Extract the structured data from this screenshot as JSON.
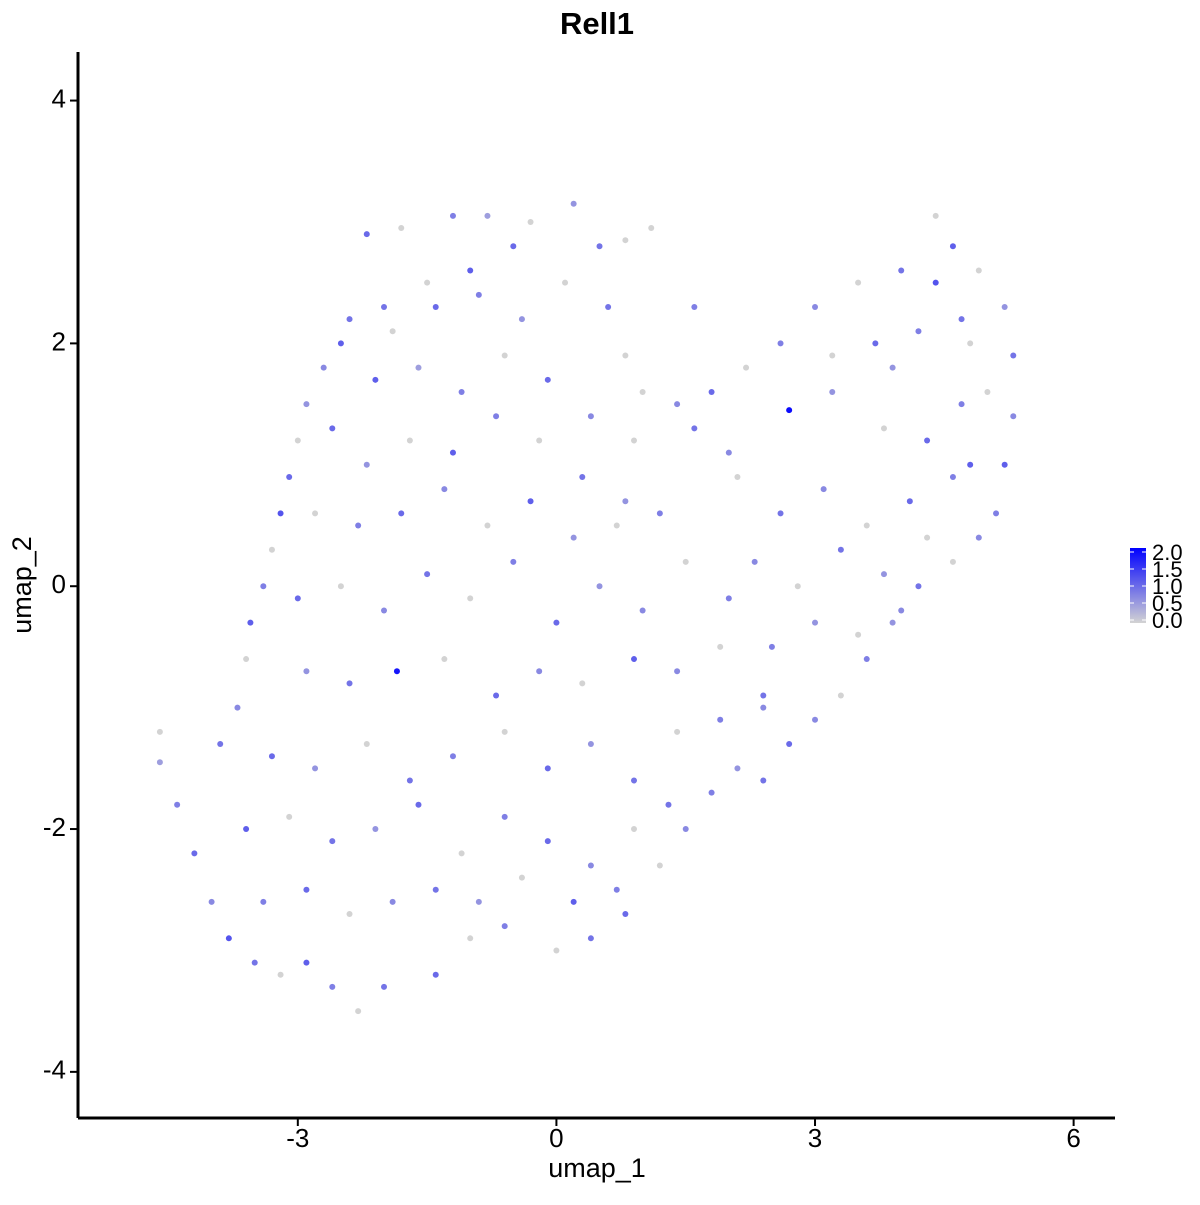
{
  "chart_data": {
    "type": "scatter",
    "title": "Rell1",
    "x_label": "umap_1",
    "y_label": "umap_2",
    "xlim": [
      -5.55,
      6.48
    ],
    "xticks": [
      -3,
      0,
      3,
      6
    ],
    "ylim": [
      -4.38,
      4.4
    ],
    "yticks": [
      -4,
      -2,
      0,
      2,
      4
    ],
    "color_low": "#d3d3d3",
    "color_high": "#0000ff",
    "colorbar_lim": [
      0,
      2
    ],
    "colorbar_ticks": [
      {
        "value": 0,
        "label": "0.0"
      },
      {
        "value": 0.5,
        "label": "0.5"
      },
      {
        "value": 1,
        "label": "1.0"
      },
      {
        "value": 1.5,
        "label": "1.5"
      },
      {
        "value": 2,
        "label": "2.0"
      }
    ],
    "x": [
      -2.2,
      -1.8,
      -1.2,
      -0.8,
      -0.3,
      0.2,
      0.5,
      0.8,
      1.1,
      -0.5,
      -1.0,
      -1.5,
      -2.0,
      -2.5,
      -2.7,
      -2.9,
      -3.0,
      -3.1,
      -3.2,
      -3.3,
      -3.4,
      -3.55,
      -3.6,
      -3.7,
      -3.9,
      -4.6,
      -4.6,
      -4.4,
      -4.2,
      -4.0,
      -3.8,
      -3.5,
      -3.2,
      -2.9,
      -2.6,
      -2.3,
      -2.0,
      -1.4,
      -1.0,
      -0.6,
      0.0,
      0.4,
      0.8,
      1.2,
      1.5,
      1.8,
      2.1,
      2.4,
      2.7,
      3.0,
      3.3,
      3.6,
      3.9,
      4.2,
      4.6,
      4.9,
      5.1,
      5.2,
      5.3,
      5.3,
      5.2,
      4.9,
      4.6,
      4.4,
      4.0,
      3.5,
      3.0,
      2.6,
      2.2,
      1.8,
      1.4,
      1.0,
      0.8,
      2.7,
      3.2,
      3.8,
      4.3,
      4.7,
      2.0,
      1.6,
      -2.4,
      -1.9,
      -1.4,
      -0.9,
      -0.4,
      0.1,
      0.6,
      -2.1,
      -1.6,
      -1.1,
      -0.6,
      -0.1,
      0.4,
      0.9,
      -2.6,
      -2.2,
      -1.7,
      -1.2,
      -0.7,
      -0.2,
      0.3,
      0.8,
      -2.8,
      -2.3,
      -1.8,
      -1.3,
      -0.8,
      -0.3,
      0.2,
      0.7,
      1.2,
      -3.0,
      -2.5,
      -2.0,
      -1.5,
      -1.0,
      -0.5,
      0.0,
      0.5,
      1.0,
      1.5,
      2.0,
      -2.9,
      -2.4,
      -1.85,
      -1.3,
      -0.7,
      -0.2,
      0.3,
      0.9,
      1.4,
      1.9,
      2.4,
      -3.3,
      -2.8,
      -2.2,
      -1.7,
      -1.2,
      -0.6,
      -0.1,
      0.4,
      0.9,
      1.4,
      1.9,
      2.4,
      -3.6,
      -3.1,
      -2.6,
      -2.1,
      -1.6,
      -1.1,
      -0.6,
      -0.1,
      0.4,
      0.9,
      1.3,
      -3.4,
      -2.9,
      -2.4,
      -1.9,
      -1.4,
      -0.9,
      -0.4,
      0.2,
      0.7,
      2.1,
      2.6,
      3.1,
      3.6,
      4.1,
      4.6,
      2.3,
      2.8,
      3.3,
      3.8,
      4.3,
      4.8,
      2.5,
      3.0,
      3.5,
      4.0,
      3.2,
      3.7,
      4.2,
      4.7,
      5.0,
      3.9,
      4.4,
      4.8,
      1.6
    ],
    "y": [
      2.9,
      2.95,
      3.05,
      3.05,
      3.0,
      3.15,
      2.8,
      2.85,
      2.95,
      2.8,
      2.6,
      2.5,
      2.3,
      2.0,
      1.8,
      1.5,
      1.2,
      0.9,
      0.6,
      0.3,
      0.0,
      -0.3,
      -0.6,
      -1.0,
      -1.3,
      -1.2,
      -1.45,
      -1.8,
      -2.2,
      -2.6,
      -2.9,
      -3.1,
      -3.2,
      -3.1,
      -3.3,
      -3.5,
      -3.3,
      -3.2,
      -2.9,
      -2.8,
      -3.0,
      -2.9,
      -2.7,
      -2.3,
      -2.0,
      -1.7,
      -1.5,
      -1.6,
      -1.3,
      -1.1,
      -0.9,
      -0.6,
      -0.3,
      0.0,
      0.2,
      0.4,
      0.6,
      1.0,
      1.4,
      1.9,
      2.3,
      2.6,
      2.8,
      3.05,
      2.6,
      2.5,
      2.3,
      2.0,
      1.8,
      1.6,
      1.5,
      1.6,
      1.9,
      1.45,
      1.6,
      1.3,
      1.2,
      1.5,
      1.1,
      1.3,
      2.2,
      2.1,
      2.3,
      2.4,
      2.2,
      2.5,
      2.3,
      1.7,
      1.8,
      1.6,
      1.9,
      1.7,
      1.4,
      1.2,
      1.3,
      1.0,
      1.2,
      1.1,
      1.4,
      1.2,
      0.9,
      0.7,
      0.6,
      0.5,
      0.6,
      0.8,
      0.5,
      0.7,
      0.4,
      0.5,
      0.6,
      -0.1,
      0.0,
      -0.2,
      0.1,
      -0.1,
      0.2,
      -0.3,
      0.0,
      -0.2,
      0.2,
      -0.1,
      -0.7,
      -0.8,
      -0.7,
      -0.6,
      -0.9,
      -0.7,
      -0.8,
      -0.6,
      -0.7,
      -0.5,
      -0.9,
      -1.4,
      -1.5,
      -1.3,
      -1.6,
      -1.4,
      -1.2,
      -1.5,
      -1.3,
      -1.6,
      -1.2,
      -1.1,
      -1.0,
      -2.0,
      -1.9,
      -2.1,
      -2.0,
      -1.8,
      -2.2,
      -1.9,
      -2.1,
      -2.3,
      -2.0,
      -1.8,
      -2.6,
      -2.5,
      -2.7,
      -2.6,
      -2.5,
      -2.6,
      -2.4,
      -2.6,
      -2.5,
      0.9,
      0.6,
      0.8,
      0.5,
      0.7,
      0.9,
      0.2,
      0.0,
      0.3,
      0.1,
      0.4,
      1.0,
      -0.5,
      -0.3,
      -0.4,
      -0.2,
      1.9,
      2.0,
      2.1,
      2.2,
      1.6,
      1.8,
      2.5,
      2.0,
      2.3
    ],
    "values": [
      1.0,
      0,
      0.8,
      0.5,
      0,
      0.6,
      0.9,
      0,
      0,
      1.0,
      1.1,
      0,
      0.9,
      1.1,
      0.7,
      0.6,
      0,
      1.0,
      1.2,
      0,
      0.8,
      1.1,
      0,
      0.7,
      0.9,
      0,
      0.5,
      0.8,
      1.0,
      0.7,
      1.2,
      0.9,
      0,
      1.1,
      0.8,
      0,
      0.9,
      1.0,
      0,
      0.8,
      0,
      0.9,
      1.0,
      0,
      0.7,
      0.8,
      0.6,
      0.9,
      1.0,
      0.7,
      0,
      0.8,
      0.6,
      0.9,
      0,
      0.7,
      0.8,
      1.1,
      0.7,
      0.9,
      0.6,
      0,
      1.1,
      0,
      0.9,
      0,
      0.7,
      0.8,
      0,
      1.0,
      0.7,
      0,
      0,
      1.9,
      0.6,
      0,
      1.0,
      0.8,
      0.7,
      0.9,
      0.9,
      0,
      1.0,
      0.8,
      0.6,
      0,
      0.9,
      1.1,
      0.5,
      0.8,
      0,
      1.0,
      0.7,
      0,
      1.0,
      0.6,
      0,
      1.1,
      0.8,
      0,
      0.9,
      0.6,
      0,
      0.8,
      1.0,
      0.7,
      0,
      1.1,
      0.6,
      0,
      0.8,
      1.0,
      0,
      0.7,
      0.9,
      0,
      0.8,
      1.0,
      0.6,
      0.7,
      0,
      0.8,
      0.6,
      0.9,
      1.8,
      0,
      1.0,
      0.7,
      0,
      1.1,
      0.7,
      0,
      0.9,
      1.0,
      0.6,
      0,
      0.9,
      0.8,
      0,
      1.0,
      0.6,
      0.9,
      0,
      0.8,
      0.7,
      1.1,
      0,
      0.9,
      0.6,
      1.0,
      0,
      0.8,
      1.0,
      0.7,
      0,
      0.9,
      0.8,
      1.0,
      0,
      0.7,
      0.9,
      0.6,
      0,
      1.1,
      0.8,
      0,
      0.9,
      0.7,
      0,
      1.0,
      0.8,
      0.7,
      0,
      0.9,
      0.6,
      0,
      1.1,
      0.8,
      0.6,
      0,
      0.7,
      0,
      1.0,
      0.8,
      0.9,
      0,
      0.6,
      1.2,
      0,
      0.8
    ]
  }
}
